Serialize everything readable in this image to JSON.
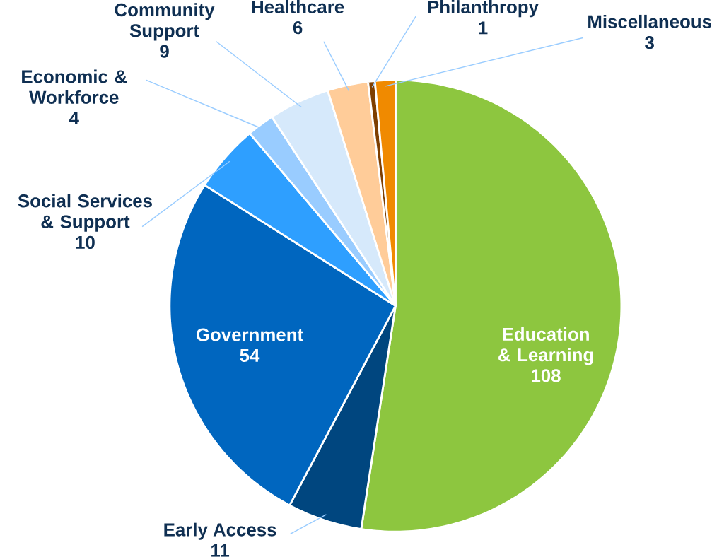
{
  "chart_data": {
    "type": "pie",
    "categories": [
      "Education & Learning",
      "Early Access",
      "Government",
      "Social Services & Support",
      "Economic & Workforce",
      "Community Support",
      "Healthcare",
      "Philanthropy",
      "Miscellaneous"
    ],
    "values": [
      108,
      11,
      54,
      10,
      4,
      9,
      6,
      1,
      3
    ],
    "colors": [
      "#8dc63f",
      "#00467f",
      "#0066bf",
      "#2e9fff",
      "#99ccff",
      "#d6e9fb",
      "#ffcc99",
      "#7f3f00",
      "#f08a00"
    ],
    "data_labels": true
  }
}
